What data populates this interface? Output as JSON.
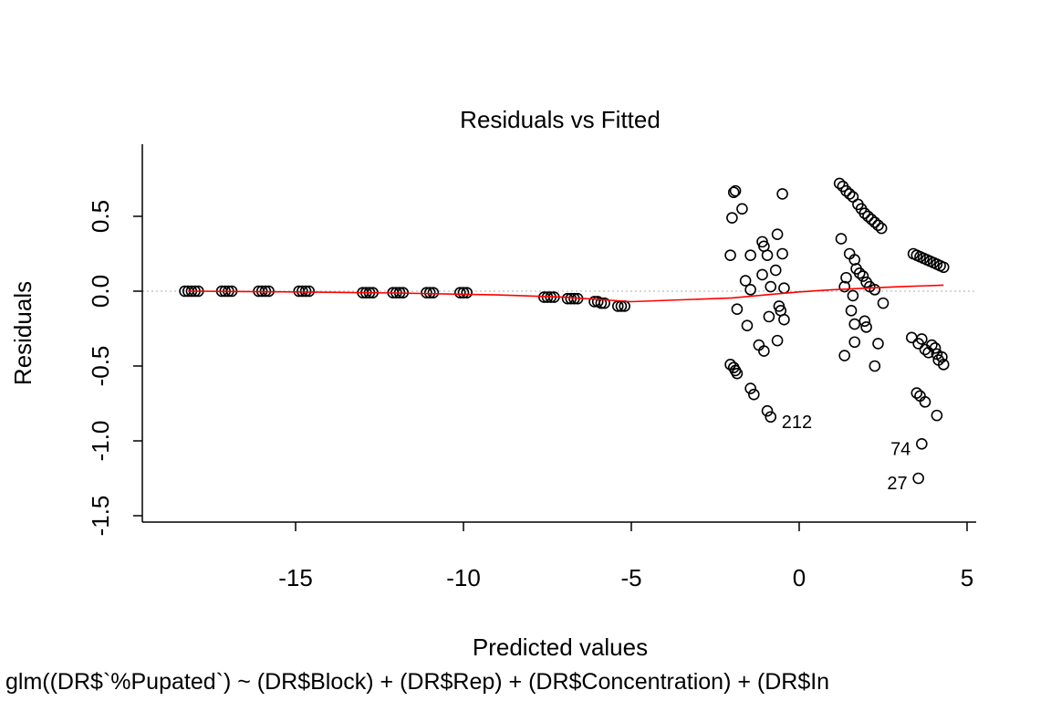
{
  "chart_data": {
    "type": "scatter",
    "title": "Residuals vs Fitted",
    "xlabel": "Predicted values",
    "ylabel": "Residuals",
    "caption": "glm((DR$`%Pupated`) ~ (DR$Block) + (DR$Rep) + (DR$Concentration) + (DR$In",
    "xlim": [
      -18.6,
      5.2
    ],
    "ylim": [
      -1.5,
      0.95
    ],
    "x_ticks": [
      -15,
      -10,
      -5,
      0,
      5
    ],
    "x_tick_labels": [
      "-15",
      "-10",
      "-5",
      "0",
      "5"
    ],
    "y_ticks": [
      -1.5,
      -1.0,
      -0.5,
      0.0,
      0.5
    ],
    "y_tick_labels": [
      "-1.5",
      "-1.0",
      "-0.5",
      "0.0",
      "0.5"
    ],
    "reference_line_y": 0,
    "colors": {
      "points": "#000000",
      "smooth": "#ff0000",
      "reference": "#bebebe"
    },
    "points": [
      {
        "x": -18.3,
        "y": 0.0
      },
      {
        "x": -18.2,
        "y": 0.0
      },
      {
        "x": -18.1,
        "y": 0.0
      },
      {
        "x": -18.0,
        "y": 0.0
      },
      {
        "x": -17.9,
        "y": 0.0
      },
      {
        "x": -17.2,
        "y": 0.0
      },
      {
        "x": -17.1,
        "y": 0.0
      },
      {
        "x": -17.0,
        "y": 0.0
      },
      {
        "x": -16.9,
        "y": 0.0
      },
      {
        "x": -16.1,
        "y": 0.0
      },
      {
        "x": -16.0,
        "y": 0.0
      },
      {
        "x": -15.9,
        "y": 0.0
      },
      {
        "x": -15.8,
        "y": 0.0
      },
      {
        "x": -14.9,
        "y": 0.0
      },
      {
        "x": -14.8,
        "y": 0.0
      },
      {
        "x": -14.7,
        "y": 0.0
      },
      {
        "x": -14.6,
        "y": 0.0
      },
      {
        "x": -13.0,
        "y": -0.01
      },
      {
        "x": -12.9,
        "y": -0.01
      },
      {
        "x": -12.8,
        "y": -0.01
      },
      {
        "x": -12.7,
        "y": -0.01
      },
      {
        "x": -12.1,
        "y": -0.01
      },
      {
        "x": -12.0,
        "y": -0.01
      },
      {
        "x": -11.9,
        "y": -0.01
      },
      {
        "x": -11.8,
        "y": -0.01
      },
      {
        "x": -11.1,
        "y": -0.01
      },
      {
        "x": -11.0,
        "y": -0.01
      },
      {
        "x": -10.9,
        "y": -0.01
      },
      {
        "x": -10.1,
        "y": -0.01
      },
      {
        "x": -10.0,
        "y": -0.01
      },
      {
        "x": -9.9,
        "y": -0.01
      },
      {
        "x": -7.6,
        "y": -0.04
      },
      {
        "x": -7.5,
        "y": -0.04
      },
      {
        "x": -7.4,
        "y": -0.04
      },
      {
        "x": -7.3,
        "y": -0.04
      },
      {
        "x": -6.9,
        "y": -0.05
      },
      {
        "x": -6.8,
        "y": -0.05
      },
      {
        "x": -6.7,
        "y": -0.05
      },
      {
        "x": -6.6,
        "y": -0.05
      },
      {
        "x": -6.1,
        "y": -0.07
      },
      {
        "x": -6.0,
        "y": -0.07
      },
      {
        "x": -5.9,
        "y": -0.08
      },
      {
        "x": -5.8,
        "y": -0.08
      },
      {
        "x": -5.4,
        "y": -0.1
      },
      {
        "x": -5.3,
        "y": -0.1
      },
      {
        "x": -5.2,
        "y": -0.1
      },
      {
        "x": -1.95,
        "y": 0.66
      },
      {
        "x": -1.9,
        "y": 0.67
      },
      {
        "x": -2.0,
        "y": 0.49
      },
      {
        "x": -1.7,
        "y": 0.55
      },
      {
        "x": -2.05,
        "y": 0.24
      },
      {
        "x": -1.45,
        "y": 0.24
      },
      {
        "x": -1.6,
        "y": 0.07
      },
      {
        "x": -1.45,
        "y": 0.01
      },
      {
        "x": -1.55,
        "y": -0.23
      },
      {
        "x": -1.85,
        "y": -0.12
      },
      {
        "x": -1.1,
        "y": 0.33
      },
      {
        "x": -1.05,
        "y": 0.3
      },
      {
        "x": -0.95,
        "y": 0.24
      },
      {
        "x": -0.65,
        "y": 0.38
      },
      {
        "x": -0.5,
        "y": 0.25
      },
      {
        "x": -0.5,
        "y": 0.65
      },
      {
        "x": -1.1,
        "y": 0.11
      },
      {
        "x": -0.7,
        "y": 0.14
      },
      {
        "x": -0.85,
        "y": 0.03
      },
      {
        "x": -0.45,
        "y": 0.02
      },
      {
        "x": -0.9,
        "y": -0.17
      },
      {
        "x": -0.6,
        "y": -0.1
      },
      {
        "x": -0.55,
        "y": -0.13
      },
      {
        "x": -0.45,
        "y": -0.19
      },
      {
        "x": -1.2,
        "y": -0.36
      },
      {
        "x": -1.05,
        "y": -0.4
      },
      {
        "x": -0.65,
        "y": -0.33
      },
      {
        "x": -2.05,
        "y": -0.49
      },
      {
        "x": -1.95,
        "y": -0.51
      },
      {
        "x": -1.9,
        "y": -0.53
      },
      {
        "x": -1.85,
        "y": -0.55
      },
      {
        "x": -1.45,
        "y": -0.65
      },
      {
        "x": -1.35,
        "y": -0.69
      },
      {
        "x": -0.95,
        "y": -0.8
      },
      {
        "x": -0.85,
        "y": -0.84
      },
      {
        "x": 1.2,
        "y": 0.72
      },
      {
        "x": 1.3,
        "y": 0.7
      },
      {
        "x": 1.4,
        "y": 0.67
      },
      {
        "x": 1.5,
        "y": 0.65
      },
      {
        "x": 1.6,
        "y": 0.63
      },
      {
        "x": 1.75,
        "y": 0.58
      },
      {
        "x": 1.85,
        "y": 0.55
      },
      {
        "x": 1.95,
        "y": 0.52
      },
      {
        "x": 2.05,
        "y": 0.5
      },
      {
        "x": 2.15,
        "y": 0.48
      },
      {
        "x": 2.25,
        "y": 0.46
      },
      {
        "x": 2.35,
        "y": 0.44
      },
      {
        "x": 2.45,
        "y": 0.42
      },
      {
        "x": 1.25,
        "y": 0.35
      },
      {
        "x": 1.5,
        "y": 0.25
      },
      {
        "x": 1.65,
        "y": 0.21
      },
      {
        "x": 1.7,
        "y": 0.15
      },
      {
        "x": 1.8,
        "y": 0.12
      },
      {
        "x": 1.9,
        "y": 0.1
      },
      {
        "x": 1.4,
        "y": 0.09
      },
      {
        "x": 2.0,
        "y": 0.06
      },
      {
        "x": 1.35,
        "y": 0.03
      },
      {
        "x": 2.1,
        "y": 0.03
      },
      {
        "x": 2.25,
        "y": 0.01
      },
      {
        "x": 1.6,
        "y": -0.03
      },
      {
        "x": 2.5,
        "y": -0.08
      },
      {
        "x": 1.55,
        "y": -0.13
      },
      {
        "x": 1.95,
        "y": -0.2
      },
      {
        "x": 1.65,
        "y": -0.22
      },
      {
        "x": 2.0,
        "y": -0.24
      },
      {
        "x": 1.65,
        "y": -0.34
      },
      {
        "x": 2.35,
        "y": -0.35
      },
      {
        "x": 1.35,
        "y": -0.43
      },
      {
        "x": 2.25,
        "y": -0.5
      },
      {
        "x": 3.4,
        "y": 0.25
      },
      {
        "x": 3.5,
        "y": 0.24
      },
      {
        "x": 3.6,
        "y": 0.23
      },
      {
        "x": 3.7,
        "y": 0.22
      },
      {
        "x": 3.8,
        "y": 0.21
      },
      {
        "x": 3.9,
        "y": 0.2
      },
      {
        "x": 4.0,
        "y": 0.19
      },
      {
        "x": 4.1,
        "y": 0.18
      },
      {
        "x": 4.2,
        "y": 0.17
      },
      {
        "x": 4.3,
        "y": 0.16
      },
      {
        "x": 3.35,
        "y": -0.31
      },
      {
        "x": 3.55,
        "y": -0.35
      },
      {
        "x": 3.65,
        "y": -0.32
      },
      {
        "x": 3.75,
        "y": -0.39
      },
      {
        "x": 3.85,
        "y": -0.41
      },
      {
        "x": 3.95,
        "y": -0.36
      },
      {
        "x": 4.05,
        "y": -0.38
      },
      {
        "x": 4.1,
        "y": -0.42
      },
      {
        "x": 4.15,
        "y": -0.46
      },
      {
        "x": 4.25,
        "y": -0.44
      },
      {
        "x": 4.3,
        "y": -0.49
      },
      {
        "x": 3.5,
        "y": -0.68
      },
      {
        "x": 3.6,
        "y": -0.7
      },
      {
        "x": 3.75,
        "y": -0.74
      },
      {
        "x": 4.1,
        "y": -0.83
      },
      {
        "x": 3.65,
        "y": -1.02
      },
      {
        "x": 3.55,
        "y": -1.25
      }
    ],
    "labeled_points": [
      {
        "label": "212",
        "x": -0.85,
        "y": -0.84
      },
      {
        "label": "74",
        "x": 3.65,
        "y": -1.02
      },
      {
        "label": "27",
        "x": 3.55,
        "y": -1.25
      }
    ],
    "smooth_line": [
      {
        "x": -18.2,
        "y": 0.0
      },
      {
        "x": -15.0,
        "y": -0.005
      },
      {
        "x": -12.0,
        "y": -0.012
      },
      {
        "x": -9.0,
        "y": -0.025
      },
      {
        "x": -7.0,
        "y": -0.04
      },
      {
        "x": -5.0,
        "y": -0.07
      },
      {
        "x": -2.0,
        "y": -0.045
      },
      {
        "x": -1.0,
        "y": -0.025
      },
      {
        "x": 0.0,
        "y": -0.005
      },
      {
        "x": 1.0,
        "y": 0.01
      },
      {
        "x": 2.0,
        "y": 0.02
      },
      {
        "x": 3.0,
        "y": 0.03
      },
      {
        "x": 4.3,
        "y": 0.04
      }
    ]
  }
}
